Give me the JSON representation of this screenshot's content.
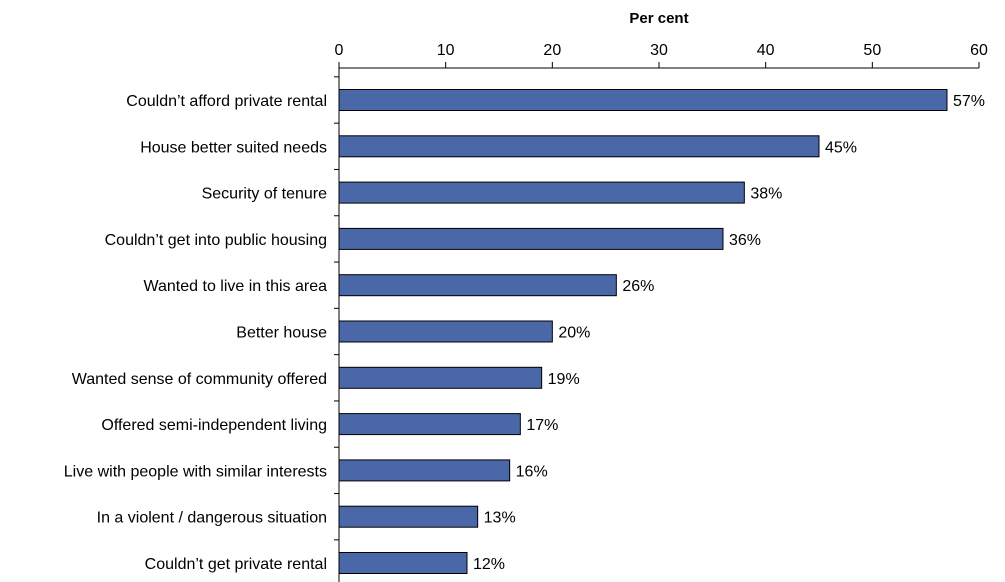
{
  "chart_data": {
    "type": "bar",
    "orientation": "horizontal",
    "xlabel": "Per cent",
    "xlim": [
      0,
      60
    ],
    "ticks": [
      0,
      10,
      20,
      30,
      40,
      50,
      60
    ],
    "x_axis_position": "top",
    "grid": false,
    "categories": [
      "Couldn’t afford private rental",
      "House better suited needs",
      "Security of tenure",
      "Couldn’t get into public housing",
      "Wanted to live in this area",
      "Better house",
      "Wanted sense of community offered",
      "Offered semi-independent living",
      "Live with people with similar interests",
      "In a violent / dangerous situation",
      "Couldn’t get private rental"
    ],
    "values": [
      57,
      45,
      38,
      36,
      26,
      20,
      19,
      17,
      16,
      13,
      12
    ],
    "data_labels": [
      "57%",
      "45%",
      "38%",
      "36%",
      "26%",
      "20%",
      "19%",
      "17%",
      "16%",
      "13%",
      "12%"
    ],
    "colors": {
      "bar_fill": "#4a68a8",
      "bar_stroke": "#000000",
      "axis": "#000000"
    }
  }
}
